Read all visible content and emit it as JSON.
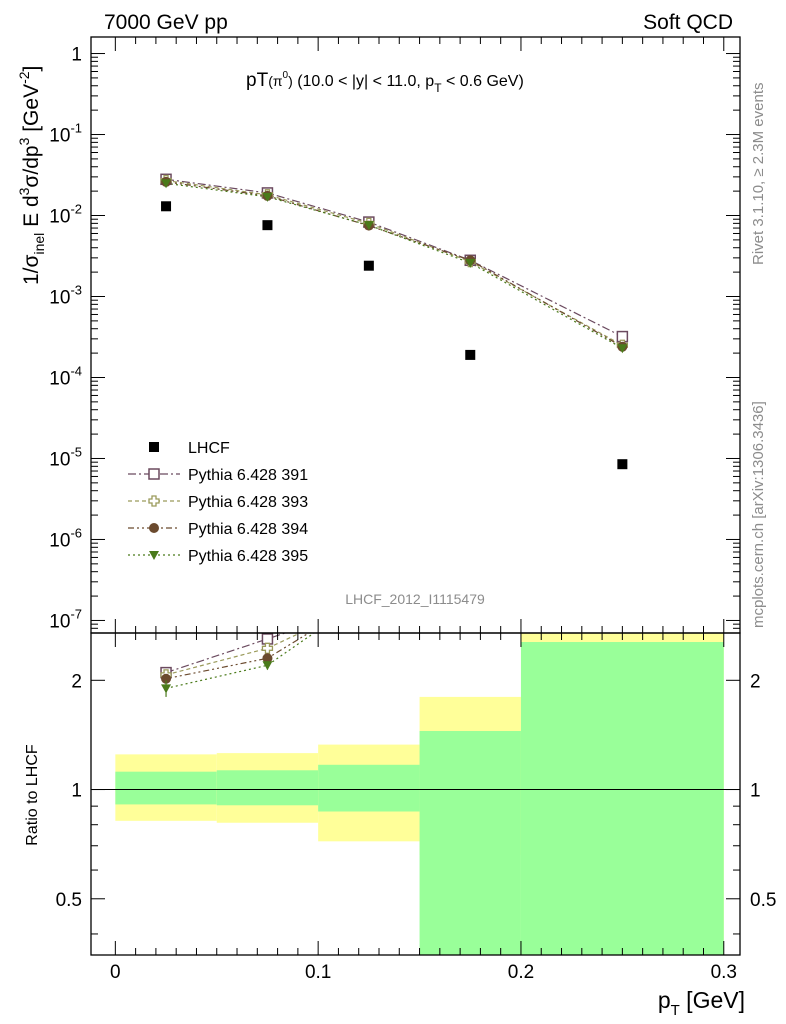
{
  "header": {
    "left": "7000 GeV pp",
    "right": "Soft QCD"
  },
  "side_text": {
    "rivet": "Rivet 3.1.10, ≥ 2.3M events",
    "mcplots": "mcplots.cern.ch [arXiv:1306.3436]"
  },
  "analysis_tag": "LHCF_2012_I1115479",
  "colors": {
    "lhcf": "#000000",
    "p391": "#6b4a5f",
    "p393": "#9a9a5a",
    "p394": "#6b4a2e",
    "p395": "#4a7a1a",
    "band_inner": "#99ff99",
    "band_outer": "#ffff99"
  },
  "chart_data": [
    {
      "type": "scatter",
      "title_parts": {
        "main": "pT",
        "paren": "(π",
        "sup": "0",
        "close": ")",
        "range": " (10.0 < |y| < 11.0, p",
        "sub": "T",
        "tail": " < 0.6 GeV)"
      },
      "ylabel_parts": {
        "a": "1/σ",
        "a_sub": "inel",
        "b": " E d",
        "b_sup": "3",
        "c": "σ/dp",
        "c_sup": "3",
        "d": " [GeV",
        "d_sup": "-2",
        "e": "]"
      },
      "y_scale": "log",
      "xlim": [
        -0.012,
        0.308
      ],
      "ylim": [
        7e-08,
        1.6
      ],
      "y_ticks": [
        {
          "base": "1",
          "exp": ""
        },
        {
          "base": "10",
          "exp": "-1"
        },
        {
          "base": "10",
          "exp": "-2"
        },
        {
          "base": "10",
          "exp": "-3"
        },
        {
          "base": "10",
          "exp": "-4"
        },
        {
          "base": "10",
          "exp": "-5"
        },
        {
          "base": "10",
          "exp": "-6"
        },
        {
          "base": "10",
          "exp": "-7"
        }
      ],
      "y_tick_values": [
        1,
        0.1,
        0.01,
        0.001,
        0.0001,
        1e-05,
        1e-06,
        1e-07
      ],
      "legend_position": "bottom-left",
      "series": [
        {
          "name": "LHCF",
          "marker": "square-filled",
          "x": [
            0.025,
            0.075,
            0.125,
            0.175,
            0.25
          ],
          "y": [
            0.013,
            0.0076,
            0.0024,
            0.00019,
            8.5e-06
          ]
        },
        {
          "name": "Pythia 6.428 391",
          "marker": "square-open",
          "x": [
            0.025,
            0.075,
            0.125,
            0.175,
            0.25
          ],
          "y": [
            0.028,
            0.019,
            0.0083,
            0.0028,
            0.00032
          ]
        },
        {
          "name": "Pythia 6.428 393",
          "marker": "cross-open",
          "x": [
            0.025,
            0.075,
            0.125,
            0.175,
            0.25
          ],
          "y": [
            0.027,
            0.018,
            0.008,
            0.0027,
            0.00025
          ]
        },
        {
          "name": "Pythia 6.428 394",
          "marker": "circle-filled",
          "x": [
            0.025,
            0.075,
            0.125,
            0.175,
            0.25
          ],
          "y": [
            0.026,
            0.0175,
            0.0075,
            0.0028,
            0.00024
          ]
        },
        {
          "name": "Pythia 6.428 395",
          "marker": "triangle-down-filled",
          "x": [
            0.025,
            0.075,
            0.125,
            0.175,
            0.25
          ],
          "y": [
            0.025,
            0.017,
            0.0076,
            0.0026,
            0.00023
          ]
        }
      ]
    },
    {
      "type": "ratio",
      "ylabel": "Ratio to LHCF",
      "xlabel_main": "p",
      "xlabel_sub": "T",
      "xlabel_unit": " [GeV]",
      "y_scale": "log",
      "xlim": [
        -0.012,
        0.308
      ],
      "ylim": [
        0.35,
        2.7
      ],
      "y_ticks": [
        "2",
        "1",
        "0.5"
      ],
      "y_tick_values": [
        2,
        1,
        0.5
      ],
      "x_ticks": [
        "0",
        "0.1",
        "0.2",
        "0.3"
      ],
      "x_tick_values": [
        0,
        0.1,
        0.2,
        0.3
      ],
      "bands": [
        {
          "x0": 0.0,
          "x1": 0.05,
          "inner": [
            0.91,
            1.12
          ],
          "outer": [
            0.82,
            1.25
          ]
        },
        {
          "x0": 0.05,
          "x1": 0.1,
          "inner": [
            0.905,
            1.13
          ],
          "outer": [
            0.81,
            1.26
          ]
        },
        {
          "x0": 0.1,
          "x1": 0.15,
          "inner": [
            0.87,
            1.17
          ],
          "outer": [
            0.72,
            1.33
          ]
        },
        {
          "x0": 0.15,
          "x1": 0.2,
          "inner": [
            0.3,
            1.45
          ],
          "outer": [
            0.66,
            1.8
          ]
        },
        {
          "x0": 0.2,
          "x1": 0.3,
          "inner": [
            0.3,
            2.55
          ],
          "outer": [
            0.3,
            2.75
          ]
        }
      ],
      "series": [
        {
          "name": "Pythia 6.428 391",
          "x": [
            0.025,
            0.075,
            0.1
          ],
          "y": [
            2.1,
            2.6,
            2.9
          ],
          "err": [
            0.06,
            0.06,
            0
          ]
        },
        {
          "name": "Pythia 6.428 393",
          "x": [
            0.025,
            0.075,
            0.1
          ],
          "y": [
            2.07,
            2.45,
            2.85
          ],
          "err": [
            0.06,
            0.06,
            0
          ]
        },
        {
          "name": "Pythia 6.428 394",
          "x": [
            0.025,
            0.075,
            0.1
          ],
          "y": [
            2.02,
            2.3,
            2.8
          ],
          "err": [
            0.06,
            0.06,
            0
          ]
        },
        {
          "name": "Pythia 6.428 395",
          "x": [
            0.025,
            0.075,
            0.1
          ],
          "y": [
            1.9,
            2.2,
            2.75
          ],
          "err": [
            0.1,
            0.06,
            0
          ]
        }
      ]
    }
  ]
}
